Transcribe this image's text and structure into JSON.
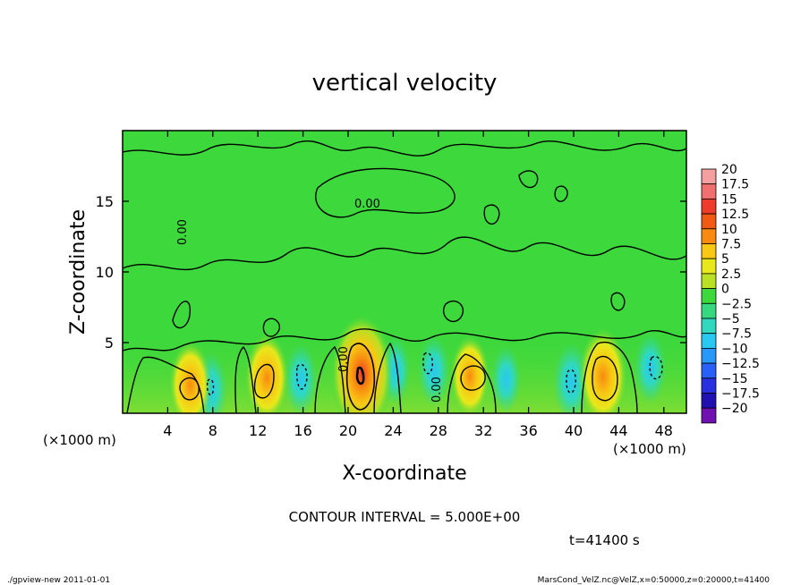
{
  "chart_data": {
    "type": "heatmap",
    "title": "vertical velocity",
    "xlabel": "X-coordinate",
    "ylabel": "Z-coordinate",
    "x_unit_note_left": "(×1000 m)",
    "x_unit_note_right": "(×1000 m)",
    "xlim": [
      0,
      50
    ],
    "ylim": [
      0,
      20
    ],
    "x_ticks": [
      4,
      8,
      12,
      16,
      20,
      24,
      28,
      32,
      36,
      40,
      44,
      48
    ],
    "x_tick_labels": [
      "4",
      "8",
      "12",
      "16",
      "20",
      "24",
      "28",
      "32",
      "36",
      "40",
      "44",
      "48"
    ],
    "y_ticks": [
      5,
      10,
      15
    ],
    "y_tick_labels": [
      "5",
      "10",
      "15"
    ],
    "colorbar_levels": [
      20,
      17.5,
      15,
      12.5,
      10,
      7.5,
      5,
      2.5,
      0,
      -2.5,
      -5,
      -7.5,
      -10,
      -12.5,
      -15,
      -17.5,
      -20
    ],
    "colorbar_labels": [
      "20",
      "17.5",
      "15",
      "12.5",
      "10",
      "7.5",
      "5",
      "2.5",
      "0",
      "−2.5",
      "−5",
      "−7.5",
      "−10",
      "−12.5",
      "−15",
      "−17.5",
      "−20"
    ],
    "colorbar_colors": [
      "#f4a0a0",
      "#f07070",
      "#ee3b2b",
      "#f05a14",
      "#f88a10",
      "#f8c814",
      "#e8e81c",
      "#b8e024",
      "#3cd83c",
      "#38d880",
      "#30d8c0",
      "#28c8f0",
      "#2898f8",
      "#2860f8",
      "#2830e0",
      "#2010b0",
      "#7010b0"
    ],
    "background_level_color": "#3cd83c",
    "contour_labels": [
      "0.00",
      "0.00",
      "0.00",
      "0.00"
    ],
    "contour_interval_text": "CONTOUR INTERVAL = 5.000E+00",
    "time_text": "t=41400 s",
    "updrafts": [
      {
        "x": 6.0,
        "z": 2.0,
        "peak": 7.5
      },
      {
        "x": 12.8,
        "z": 2.5,
        "peak": 8.0
      },
      {
        "x": 21.2,
        "z": 2.8,
        "peak": 15.0
      },
      {
        "x": 30.8,
        "z": 2.6,
        "peak": 6.0
      },
      {
        "x": 42.6,
        "z": 2.6,
        "peak": 10.0
      }
    ],
    "downdrafts": [
      {
        "x": 7.8,
        "z": 1.7,
        "peak": -6.0
      },
      {
        "x": 15.8,
        "z": 2.4,
        "peak": -5.5
      },
      {
        "x": 24.2,
        "z": 3.0,
        "peak": -4.0
      },
      {
        "x": 27.6,
        "z": 3.0,
        "peak": -5.0
      },
      {
        "x": 34.0,
        "z": 2.4,
        "peak": -4.0
      },
      {
        "x": 39.8,
        "z": 2.2,
        "peak": -7.5
      },
      {
        "x": 46.8,
        "z": 3.2,
        "peak": -5.0
      }
    ]
  },
  "footer": {
    "left": "./gpview-new  2011-01-01",
    "right": "MarsCond_VelZ.nc@VelZ,x=0:50000,z=0:20000,t=41400"
  }
}
